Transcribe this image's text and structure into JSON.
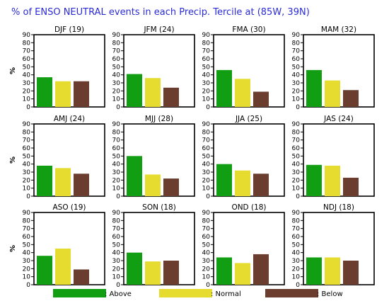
{
  "chart_data": {
    "type": "bar",
    "title": "% of ENSO NEUTRAL events in each Precip. Tercile at (85W, 39N)",
    "ylabel": "%",
    "ylim": [
      0,
      90
    ],
    "yticks": [
      0,
      10,
      20,
      30,
      40,
      50,
      60,
      70,
      80,
      90
    ],
    "grid": false,
    "legend": {
      "placement": "bottom",
      "entries": [
        {
          "label": ": Above",
          "color": "#129e12"
        },
        {
          "label": ": Normal",
          "color": "#e6dc30"
        },
        {
          "label": ": Below",
          "color": "#6b3d2e"
        }
      ]
    },
    "series_names": [
      "Above",
      "Normal",
      "Below"
    ],
    "colors": {
      "above": "#129e12",
      "normal": "#e6dc30",
      "below": "#6b3d2e",
      "title": "#2b2bd6"
    },
    "panels": [
      {
        "title": "DJF (19)",
        "values": [
          37,
          32,
          32
        ]
      },
      {
        "title": "JFM (24)",
        "values": [
          41,
          36,
          24
        ]
      },
      {
        "title": "FMA (30)",
        "values": [
          46,
          35,
          19
        ]
      },
      {
        "title": "MAM (32)",
        "values": [
          46,
          33,
          21
        ]
      },
      {
        "title": "AMJ (24)",
        "values": [
          38,
          35,
          28
        ]
      },
      {
        "title": "MJJ (28)",
        "values": [
          50,
          27,
          22
        ]
      },
      {
        "title": "JJA (25)",
        "values": [
          40,
          32,
          28
        ]
      },
      {
        "title": "JAS (24)",
        "values": [
          39,
          38,
          23
        ]
      },
      {
        "title": "ASO (19)",
        "values": [
          36,
          45,
          19
        ]
      },
      {
        "title": "SON (18)",
        "values": [
          40,
          29,
          30
        ]
      },
      {
        "title": "OND (18)",
        "values": [
          34,
          27,
          38
        ]
      },
      {
        "title": "NDJ (18)",
        "values": [
          34,
          34,
          30
        ]
      }
    ]
  }
}
